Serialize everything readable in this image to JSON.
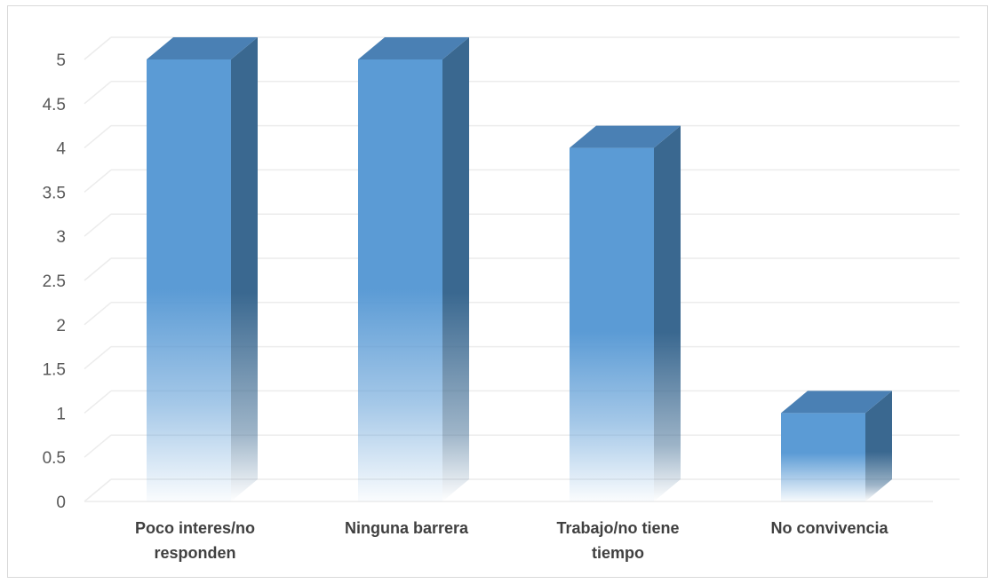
{
  "chart_data": {
    "type": "bar",
    "title": "",
    "xlabel": "",
    "ylabel": "",
    "categories": [
      [
        "Poco interes/no",
        "responden"
      ],
      [
        "Ninguna barrera"
      ],
      [
        "Trabajo/no tiene",
        "tiempo"
      ],
      [
        "No convivencia"
      ]
    ],
    "values": [
      5,
      5,
      4,
      1
    ],
    "ylim": [
      0,
      5
    ],
    "yticks": [
      "0",
      "0.5",
      "1",
      "1.5",
      "2",
      "2.5",
      "3",
      "3.5",
      "4",
      "4.5",
      "5"
    ],
    "grid": true,
    "legend": "none",
    "style": "3d-column",
    "colors": {
      "front": "#5b9bd5",
      "side": "#3a6890",
      "top": "#4a80b4",
      "grid": "#ececec",
      "tick_text": "#595959",
      "label_text": "#404040"
    }
  }
}
